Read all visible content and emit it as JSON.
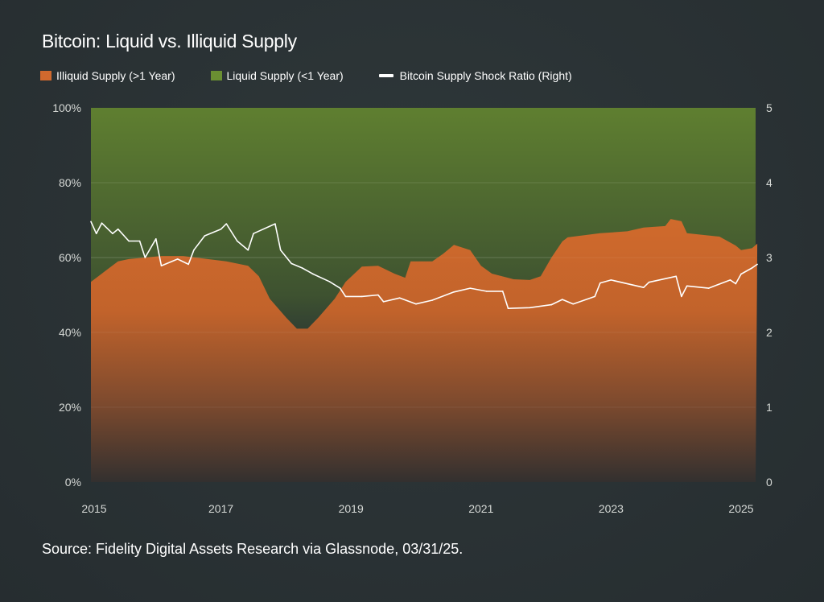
{
  "title": "Bitcoin: Liquid vs. Illiquid Supply",
  "source": "Source: Fidelity Digital Assets Research via Glassnode, 03/31/25.",
  "colors": {
    "illiquid": "#c8652b",
    "liquid": "#5f7f30",
    "ratio": "#ffffff"
  },
  "legend": [
    {
      "label": "Illiquid Supply (>1 Year)",
      "color": "#d0692e",
      "type": "area"
    },
    {
      "label": "Liquid Supply (<1 Year)",
      "color": "#6a8f32",
      "type": "area"
    },
    {
      "label": "Bitcoin Supply Shock Ratio (Right)",
      "color": "#ffffff",
      "type": "line"
    }
  ],
  "chart_data": {
    "type": "area",
    "title": "Bitcoin: Liquid vs. Illiquid Supply",
    "xlim": [
      "2015-01",
      "2025-03-31"
    ],
    "x_ticks": [
      "2015",
      "2017",
      "2019",
      "2021",
      "2023",
      "2025"
    ],
    "y_left": {
      "ylim": [
        0,
        100
      ],
      "ticks": [
        "0%",
        "20%",
        "40%",
        "60%",
        "80%",
        "100%"
      ],
      "unit": "%"
    },
    "y_right": {
      "ylim": [
        0,
        5
      ],
      "ticks": [
        "0",
        "1",
        "2",
        "3",
        "4",
        "5"
      ]
    },
    "grid": true,
    "legend_position": "top-left",
    "series": [
      {
        "name": "Illiquid Supply (>1 Year)",
        "type": "area",
        "axis": "left",
        "points": [
          [
            "2015-01",
            53.5
          ],
          [
            "2015-04",
            56.8
          ],
          [
            "2015-06",
            59
          ],
          [
            "2015-08",
            59.6
          ],
          [
            "2016-02",
            60.4
          ],
          [
            "2016-06",
            60.4
          ],
          [
            "2017-02",
            59
          ],
          [
            "2017-06",
            57.8
          ],
          [
            "2017-08",
            55
          ],
          [
            "2017-10",
            49
          ],
          [
            "2018-01",
            44
          ],
          [
            "2018-03",
            41
          ],
          [
            "2018-05",
            41
          ],
          [
            "2018-07",
            44
          ],
          [
            "2018-10",
            49
          ],
          [
            "2018-12",
            53.5
          ],
          [
            "2019-03",
            57.6
          ],
          [
            "2019-06",
            57.8
          ],
          [
            "2019-09",
            55.7
          ],
          [
            "2019-11",
            54.6
          ],
          [
            "2019-12",
            59
          ],
          [
            "2020-04",
            59
          ],
          [
            "2020-06",
            61
          ],
          [
            "2020-08",
            63.4
          ],
          [
            "2020-11",
            62
          ],
          [
            "2021-01",
            57.8
          ],
          [
            "2021-03",
            55.7
          ],
          [
            "2021-07",
            54.2
          ],
          [
            "2021-10",
            54
          ],
          [
            "2021-12",
            55
          ],
          [
            "2022-02",
            60
          ],
          [
            "2022-04",
            64.3
          ],
          [
            "2022-05",
            65.4
          ],
          [
            "2022-11",
            66.5
          ],
          [
            "2023-04",
            67
          ],
          [
            "2023-07",
            68
          ],
          [
            "2023-11",
            68.4
          ],
          [
            "2023-12",
            70.3
          ],
          [
            "2024-02",
            69.7
          ],
          [
            "2024-03",
            66.5
          ],
          [
            "2024-09",
            65.6
          ],
          [
            "2024-12",
            63.2
          ],
          [
            "2025-01",
            62
          ],
          [
            "2025-03",
            62.5
          ],
          [
            "2025-03-31",
            63.7
          ]
        ]
      },
      {
        "name": "Liquid Supply (<1 Year)",
        "type": "area",
        "axis": "left",
        "note_stacked_to": 100
      },
      {
        "name": "Bitcoin Supply Shock Ratio (Right)",
        "type": "line",
        "axis": "right",
        "points": [
          [
            "2015-01",
            3.48
          ],
          [
            "2015-02",
            3.32
          ],
          [
            "2015-03",
            3.46
          ],
          [
            "2015-05",
            3.32
          ],
          [
            "2015-06",
            3.38
          ],
          [
            "2015-08",
            3.22
          ],
          [
            "2015-10",
            3.22
          ],
          [
            "2015-11",
            3.0
          ],
          [
            "2016-01",
            3.25
          ],
          [
            "2016-02",
            2.89
          ],
          [
            "2016-05",
            2.98
          ],
          [
            "2016-07",
            2.91
          ],
          [
            "2016-08",
            3.1
          ],
          [
            "2016-10",
            3.29
          ],
          [
            "2017-01",
            3.38
          ],
          [
            "2017-02",
            3.45
          ],
          [
            "2017-04",
            3.22
          ],
          [
            "2017-06",
            3.1
          ],
          [
            "2017-07",
            3.32
          ],
          [
            "2017-11",
            3.45
          ],
          [
            "2017-12",
            3.1
          ],
          [
            "2018-02",
            2.92
          ],
          [
            "2018-04",
            2.86
          ],
          [
            "2018-06",
            2.78
          ],
          [
            "2018-09",
            2.68
          ],
          [
            "2018-11",
            2.59
          ],
          [
            "2018-12",
            2.48
          ],
          [
            "2019-03",
            2.48
          ],
          [
            "2019-06",
            2.5
          ],
          [
            "2019-07",
            2.41
          ],
          [
            "2019-10",
            2.46
          ],
          [
            "2020-01",
            2.38
          ],
          [
            "2020-04",
            2.43
          ],
          [
            "2020-08",
            2.54
          ],
          [
            "2020-11",
            2.59
          ],
          [
            "2021-02",
            2.55
          ],
          [
            "2021-05",
            2.55
          ],
          [
            "2021-06",
            2.32
          ],
          [
            "2021-10",
            2.33
          ],
          [
            "2022-02",
            2.37
          ],
          [
            "2022-04",
            2.44
          ],
          [
            "2022-06",
            2.38
          ],
          [
            "2022-10",
            2.48
          ],
          [
            "2022-11",
            2.66
          ],
          [
            "2023-01",
            2.7
          ],
          [
            "2023-07",
            2.6
          ],
          [
            "2023-08",
            2.67
          ],
          [
            "2024-01",
            2.75
          ],
          [
            "2024-02",
            2.48
          ],
          [
            "2024-03",
            2.62
          ],
          [
            "2024-07",
            2.59
          ],
          [
            "2024-11",
            2.7
          ],
          [
            "2024-12",
            2.65
          ],
          [
            "2025-01",
            2.78
          ],
          [
            "2025-03",
            2.86
          ],
          [
            "2025-03-31",
            2.91
          ]
        ]
      }
    ]
  }
}
